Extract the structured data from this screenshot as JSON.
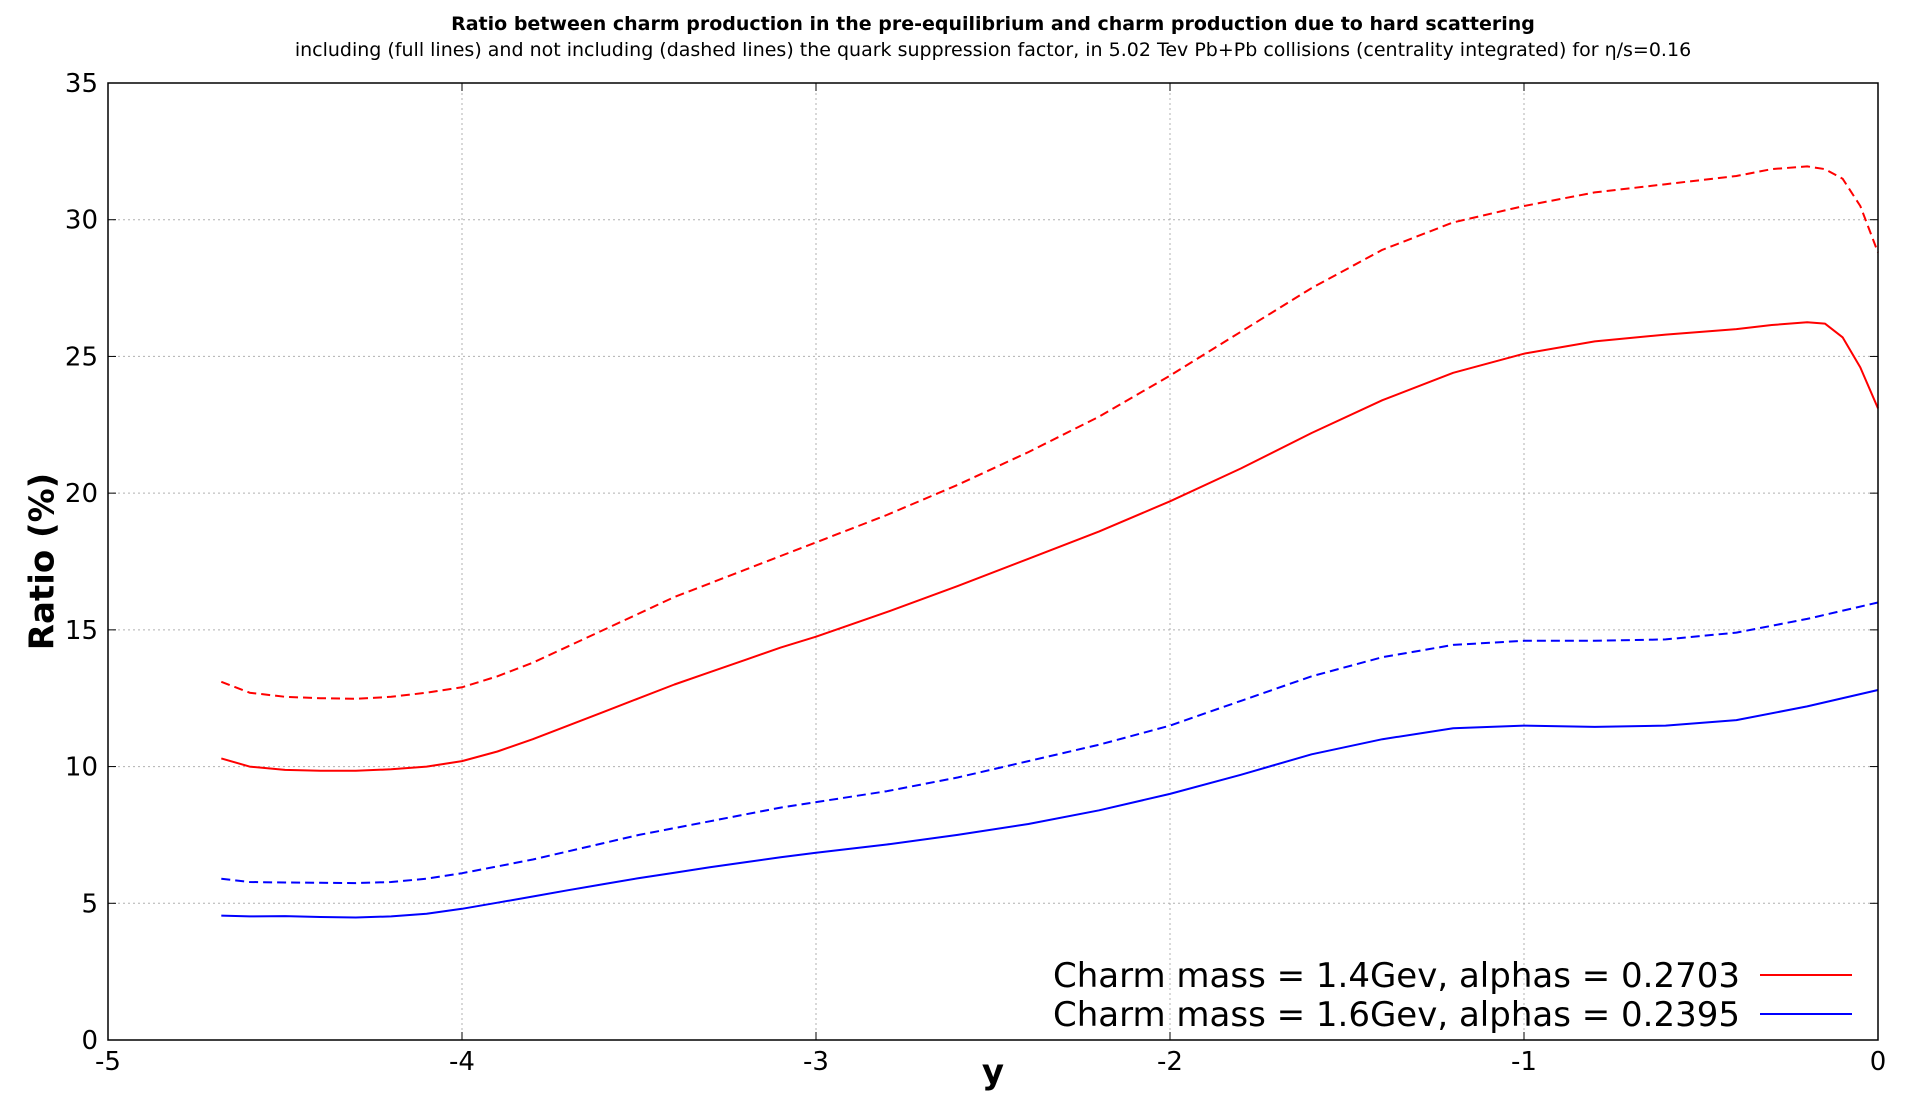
{
  "chart_data": {
    "type": "line",
    "title": "Ratio between charm production in the pre-equilibrium and charm production due to hard scattering",
    "subtitle": "including (full lines) and not including (dashed lines) the quark suppression factor, in 5.02 Tev Pb+Pb collisions (centrality integrated) for η/s=0.16",
    "xlabel": "y",
    "ylabel": "Ratio (%)",
    "xlim": [
      -5,
      0
    ],
    "ylim": [
      0,
      35
    ],
    "xticks": [
      -5,
      -4,
      -3,
      -2,
      -1,
      0
    ],
    "xtick_labels": [
      "-5",
      "-4",
      "-3",
      "-2",
      "-1",
      "0"
    ],
    "yticks": [
      0,
      5,
      10,
      15,
      20,
      25,
      30,
      35
    ],
    "ytick_labels": [
      "0",
      "5",
      "10",
      "15",
      "20",
      "25",
      "30",
      "35"
    ],
    "grid": true,
    "legend_position": "bottom-right",
    "legend": [
      {
        "label": "Charm mass = 1.4Gev, alphas = 0.2703",
        "color": "#ff0000"
      },
      {
        "label": "Charm mass = 1.6Gev, alphas = 0.2395",
        "color": "#0000ff"
      }
    ],
    "series": [
      {
        "color": "#ff0000",
        "dashed": true,
        "x": [
          -4.68,
          -4.6,
          -4.5,
          -4.4,
          -4.3,
          -4.2,
          -4.1,
          -4.0,
          -3.9,
          -3.8,
          -3.7,
          -3.6,
          -3.5,
          -3.4,
          -3.3,
          -3.2,
          -3.1,
          -3.0,
          -2.8,
          -2.6,
          -2.4,
          -2.2,
          -2.0,
          -1.8,
          -1.6,
          -1.4,
          -1.2,
          -1.0,
          -0.8,
          -0.6,
          -0.4,
          -0.3,
          -0.2,
          -0.15,
          -0.1,
          -0.05,
          0.0
        ],
        "y": [
          13.1,
          12.7,
          12.55,
          12.5,
          12.48,
          12.55,
          12.7,
          12.9,
          13.3,
          13.8,
          14.4,
          15.0,
          15.6,
          16.2,
          16.7,
          17.2,
          17.7,
          18.2,
          19.2,
          20.3,
          21.5,
          22.8,
          24.3,
          25.9,
          27.5,
          28.9,
          29.9,
          30.5,
          31.0,
          31.3,
          31.6,
          31.85,
          31.95,
          31.85,
          31.5,
          30.5,
          28.8
        ]
      },
      {
        "color": "#ff0000",
        "dashed": false,
        "x": [
          -4.68,
          -4.6,
          -4.5,
          -4.4,
          -4.3,
          -4.2,
          -4.1,
          -4.0,
          -3.9,
          -3.8,
          -3.7,
          -3.6,
          -3.5,
          -3.4,
          -3.3,
          -3.2,
          -3.1,
          -3.0,
          -2.8,
          -2.6,
          -2.4,
          -2.2,
          -2.0,
          -1.8,
          -1.6,
          -1.4,
          -1.2,
          -1.0,
          -0.8,
          -0.6,
          -0.4,
          -0.3,
          -0.2,
          -0.15,
          -0.1,
          -0.05,
          0.0
        ],
        "y": [
          10.3,
          10.0,
          9.88,
          9.85,
          9.85,
          9.9,
          10.0,
          10.2,
          10.55,
          11.0,
          11.5,
          12.0,
          12.5,
          13.0,
          13.45,
          13.9,
          14.35,
          14.75,
          15.65,
          16.6,
          17.6,
          18.6,
          19.7,
          20.9,
          22.2,
          23.4,
          24.4,
          25.1,
          25.55,
          25.8,
          26.0,
          26.15,
          26.25,
          26.2,
          25.7,
          24.6,
          23.1
        ]
      },
      {
        "color": "#0000ff",
        "dashed": true,
        "x": [
          -4.68,
          -4.6,
          -4.5,
          -4.4,
          -4.3,
          -4.2,
          -4.1,
          -4.0,
          -3.9,
          -3.8,
          -3.7,
          -3.6,
          -3.5,
          -3.4,
          -3.3,
          -3.2,
          -3.1,
          -3.0,
          -2.8,
          -2.6,
          -2.4,
          -2.2,
          -2.0,
          -1.8,
          -1.6,
          -1.4,
          -1.2,
          -1.0,
          -0.8,
          -0.6,
          -0.4,
          -0.2,
          0.0
        ],
        "y": [
          5.9,
          5.78,
          5.76,
          5.75,
          5.74,
          5.78,
          5.9,
          6.1,
          6.35,
          6.6,
          6.9,
          7.2,
          7.5,
          7.75,
          8.0,
          8.25,
          8.5,
          8.7,
          9.1,
          9.6,
          10.2,
          10.8,
          11.5,
          12.4,
          13.3,
          14.0,
          14.45,
          14.6,
          14.6,
          14.65,
          14.9,
          15.4,
          16.0
        ]
      },
      {
        "color": "#0000ff",
        "dashed": false,
        "x": [
          -4.68,
          -4.6,
          -4.5,
          -4.4,
          -4.3,
          -4.2,
          -4.1,
          -4.0,
          -3.9,
          -3.8,
          -3.7,
          -3.6,
          -3.5,
          -3.4,
          -3.3,
          -3.2,
          -3.1,
          -3.0,
          -2.8,
          -2.6,
          -2.4,
          -2.2,
          -2.0,
          -1.8,
          -1.6,
          -1.4,
          -1.2,
          -1.0,
          -0.8,
          -0.6,
          -0.4,
          -0.2,
          0.0
        ],
        "y": [
          4.55,
          4.52,
          4.53,
          4.5,
          4.48,
          4.52,
          4.62,
          4.8,
          5.02,
          5.25,
          5.48,
          5.7,
          5.92,
          6.12,
          6.32,
          6.5,
          6.68,
          6.85,
          7.15,
          7.5,
          7.9,
          8.4,
          9.0,
          9.7,
          10.45,
          11.0,
          11.4,
          11.5,
          11.45,
          11.5,
          11.7,
          12.2,
          12.8
        ]
      }
    ]
  }
}
